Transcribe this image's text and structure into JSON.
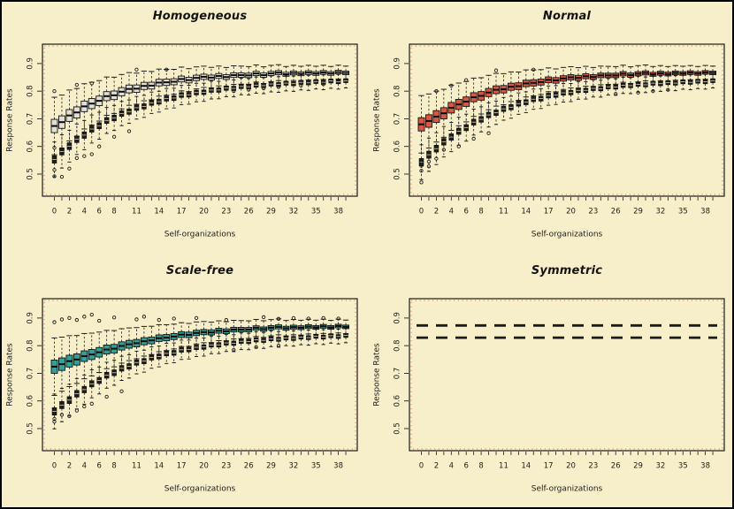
{
  "figure": {
    "background": "#F7EFC9",
    "frame_color": "#1a1a1a",
    "artifact_red": "#cc4433",
    "text_color": "#1c1c1c"
  },
  "axes": {
    "xlabel": "Self-organizations",
    "ylabel": "Response Rates",
    "y_ticks": [
      0.5,
      0.6,
      0.7,
      0.8,
      0.9
    ],
    "ylim": [
      0.42,
      0.97
    ],
    "n_positions": 40,
    "x_tick_positions": [
      0,
      2,
      4,
      6,
      8,
      11,
      14,
      17,
      20,
      23,
      26,
      29,
      32,
      35,
      38
    ],
    "x_tick_labels": [
      "0",
      "2",
      "4",
      "6",
      "8",
      "11",
      "14",
      "17",
      "20",
      "23",
      "26",
      "29",
      "32",
      "35",
      "38"
    ]
  },
  "chart_data": [
    {
      "key": "homogeneous",
      "title": "Homogeneous",
      "type": "boxplot",
      "series": [
        {
          "id": "light",
          "color": "#E2E0D6",
          "box_hi": 0.048,
          "box_lo": 0.011,
          "whisker_hi": 0.08,
          "whisker_lo": 0.015,
          "decay": 13,
          "medians": [
            0.674,
            0.688,
            0.712,
            0.723,
            0.745,
            0.755,
            0.765,
            0.782,
            0.785,
            0.798,
            0.808,
            0.809,
            0.819,
            0.82,
            0.831,
            0.832,
            0.834,
            0.844,
            0.84,
            0.848,
            0.852,
            0.849,
            0.855,
            0.851,
            0.858,
            0.858,
            0.857,
            0.864,
            0.858,
            0.864,
            0.867,
            0.861,
            0.866,
            0.863,
            0.867,
            0.864,
            0.868,
            0.864,
            0.869,
            0.866
          ],
          "outliers": [
            [
              0,
              0.8
            ],
            [
              3,
              0.823
            ],
            [
              5,
              0.828
            ],
            [
              11,
              0.878
            ],
            [
              15,
              0.878
            ],
            [
              0,
              0.595
            ]
          ]
        },
        {
          "id": "dark",
          "color": "#1f1f1f",
          "box_hi": 0.026,
          "box_lo": 0.013,
          "whisker_hi": 0.05,
          "whisker_lo": 0.018,
          "decay": 13,
          "medians": [
            0.553,
            0.582,
            0.601,
            0.626,
            0.641,
            0.663,
            0.675,
            0.694,
            0.703,
            0.719,
            0.726,
            0.74,
            0.745,
            0.758,
            0.762,
            0.773,
            0.775,
            0.786,
            0.787,
            0.795,
            0.796,
            0.804,
            0.804,
            0.811,
            0.81,
            0.817,
            0.816,
            0.822,
            0.82,
            0.826,
            0.824,
            0.829,
            0.827,
            0.832,
            0.83,
            0.835,
            0.832,
            0.837,
            0.834,
            0.838
          ],
          "outliers": [
            [
              0,
              0.515
            ],
            [
              0,
              0.492
            ],
            [
              1,
              0.49
            ],
            [
              2,
              0.52
            ],
            [
              3,
              0.558
            ],
            [
              4,
              0.565
            ],
            [
              5,
              0.572
            ],
            [
              6,
              0.6
            ],
            [
              8,
              0.635
            ],
            [
              10,
              0.655
            ],
            [
              24,
              0.8
            ],
            [
              26,
              0.805
            ],
            [
              28,
              0.81
            ],
            [
              30,
              0.815
            ],
            [
              33,
              0.82
            ],
            [
              36,
              0.825
            ]
          ]
        }
      ]
    },
    {
      "key": "normal",
      "title": "Normal",
      "type": "boxplot",
      "series": [
        {
          "id": "light",
          "color": "#DD5740",
          "box_hi": 0.048,
          "box_lo": 0.011,
          "whisker_hi": 0.08,
          "whisker_lo": 0.015,
          "decay": 13,
          "medians": [
            0.68,
            0.692,
            0.708,
            0.72,
            0.74,
            0.752,
            0.762,
            0.778,
            0.783,
            0.795,
            0.805,
            0.807,
            0.816,
            0.818,
            0.828,
            0.83,
            0.833,
            0.841,
            0.839,
            0.846,
            0.85,
            0.848,
            0.854,
            0.851,
            0.857,
            0.857,
            0.857,
            0.863,
            0.858,
            0.863,
            0.866,
            0.861,
            0.865,
            0.862,
            0.866,
            0.864,
            0.867,
            0.864,
            0.868,
            0.866
          ],
          "outliers": [
            [
              2,
              0.8
            ],
            [
              4,
              0.82
            ],
            [
              6,
              0.84
            ],
            [
              10,
              0.875
            ],
            [
              15,
              0.878
            ]
          ]
        },
        {
          "id": "dark",
          "color": "#1f1f1f",
          "box_hi": 0.026,
          "box_lo": 0.013,
          "whisker_hi": 0.05,
          "whisker_lo": 0.018,
          "decay": 13,
          "medians": [
            0.543,
            0.57,
            0.592,
            0.617,
            0.634,
            0.655,
            0.668,
            0.688,
            0.698,
            0.714,
            0.722,
            0.736,
            0.742,
            0.755,
            0.76,
            0.771,
            0.773,
            0.784,
            0.786,
            0.794,
            0.795,
            0.803,
            0.803,
            0.81,
            0.809,
            0.816,
            0.815,
            0.821,
            0.82,
            0.825,
            0.823,
            0.829,
            0.827,
            0.831,
            0.829,
            0.834,
            0.832,
            0.836,
            0.834,
            0.838
          ],
          "outliers": [
            [
              0,
              0.545
            ],
            [
              0,
              0.53
            ],
            [
              0,
              0.512
            ],
            [
              0,
              0.47
            ],
            [
              1,
              0.545
            ],
            [
              1,
              0.528
            ],
            [
              2,
              0.556
            ],
            [
              3,
              0.588
            ],
            [
              5,
              0.6
            ],
            [
              7,
              0.628
            ],
            [
              9,
              0.648
            ],
            [
              26,
              0.79
            ],
            [
              29,
              0.795
            ],
            [
              31,
              0.8
            ],
            [
              33,
              0.805
            ]
          ]
        }
      ]
    },
    {
      "key": "scale-free",
      "title": "Scale-free",
      "type": "boxplot",
      "series": [
        {
          "id": "light",
          "color": "#2EA39B",
          "box_hi": 0.048,
          "box_lo": 0.011,
          "whisker_hi": 0.08,
          "whisker_lo": 0.015,
          "decay": 13,
          "medians": [
            0.724,
            0.733,
            0.744,
            0.75,
            0.762,
            0.768,
            0.776,
            0.786,
            0.789,
            0.799,
            0.805,
            0.809,
            0.816,
            0.819,
            0.827,
            0.829,
            0.833,
            0.84,
            0.839,
            0.846,
            0.849,
            0.848,
            0.854,
            0.852,
            0.858,
            0.858,
            0.858,
            0.864,
            0.86,
            0.865,
            0.868,
            0.863,
            0.867,
            0.865,
            0.869,
            0.866,
            0.87,
            0.866,
            0.871,
            0.868
          ],
          "outliers": [
            [
              0,
              0.885
            ],
            [
              1,
              0.895
            ],
            [
              2,
              0.9
            ],
            [
              3,
              0.893
            ],
            [
              4,
              0.905
            ],
            [
              5,
              0.912
            ],
            [
              6,
              0.89
            ],
            [
              8,
              0.902
            ],
            [
              11,
              0.895
            ],
            [
              12,
              0.905
            ],
            [
              14,
              0.893
            ],
            [
              16,
              0.898
            ],
            [
              19,
              0.9
            ],
            [
              23,
              0.893
            ],
            [
              28,
              0.903
            ],
            [
              30,
              0.897
            ],
            [
              32,
              0.9
            ],
            [
              34,
              0.898
            ],
            [
              36,
              0.9
            ],
            [
              38,
              0.898
            ]
          ]
        },
        {
          "id": "dark",
          "color": "#1f1f1f",
          "box_hi": 0.026,
          "box_lo": 0.013,
          "whisker_hi": 0.05,
          "whisker_lo": 0.018,
          "decay": 13,
          "medians": [
            0.562,
            0.585,
            0.603,
            0.626,
            0.641,
            0.662,
            0.674,
            0.693,
            0.702,
            0.718,
            0.725,
            0.739,
            0.744,
            0.757,
            0.761,
            0.772,
            0.774,
            0.785,
            0.786,
            0.794,
            0.795,
            0.803,
            0.803,
            0.81,
            0.809,
            0.816,
            0.815,
            0.821,
            0.819,
            0.825,
            0.823,
            0.828,
            0.826,
            0.831,
            0.829,
            0.834,
            0.831,
            0.836,
            0.833,
            0.837
          ],
          "outliers": [
            [
              0,
              0.535
            ],
            [
              0,
              0.525
            ],
            [
              1,
              0.55
            ],
            [
              2,
              0.545
            ],
            [
              3,
              0.565
            ],
            [
              4,
              0.58
            ],
            [
              5,
              0.59
            ],
            [
              7,
              0.615
            ],
            [
              9,
              0.635
            ],
            [
              24,
              0.785
            ],
            [
              27,
              0.795
            ],
            [
              30,
              0.8
            ]
          ]
        }
      ]
    },
    {
      "key": "symmetric",
      "title": "Symmetric",
      "type": "dashed_lines",
      "lines": [
        {
          "y": 0.873
        },
        {
          "y": 0.829
        }
      ]
    }
  ]
}
